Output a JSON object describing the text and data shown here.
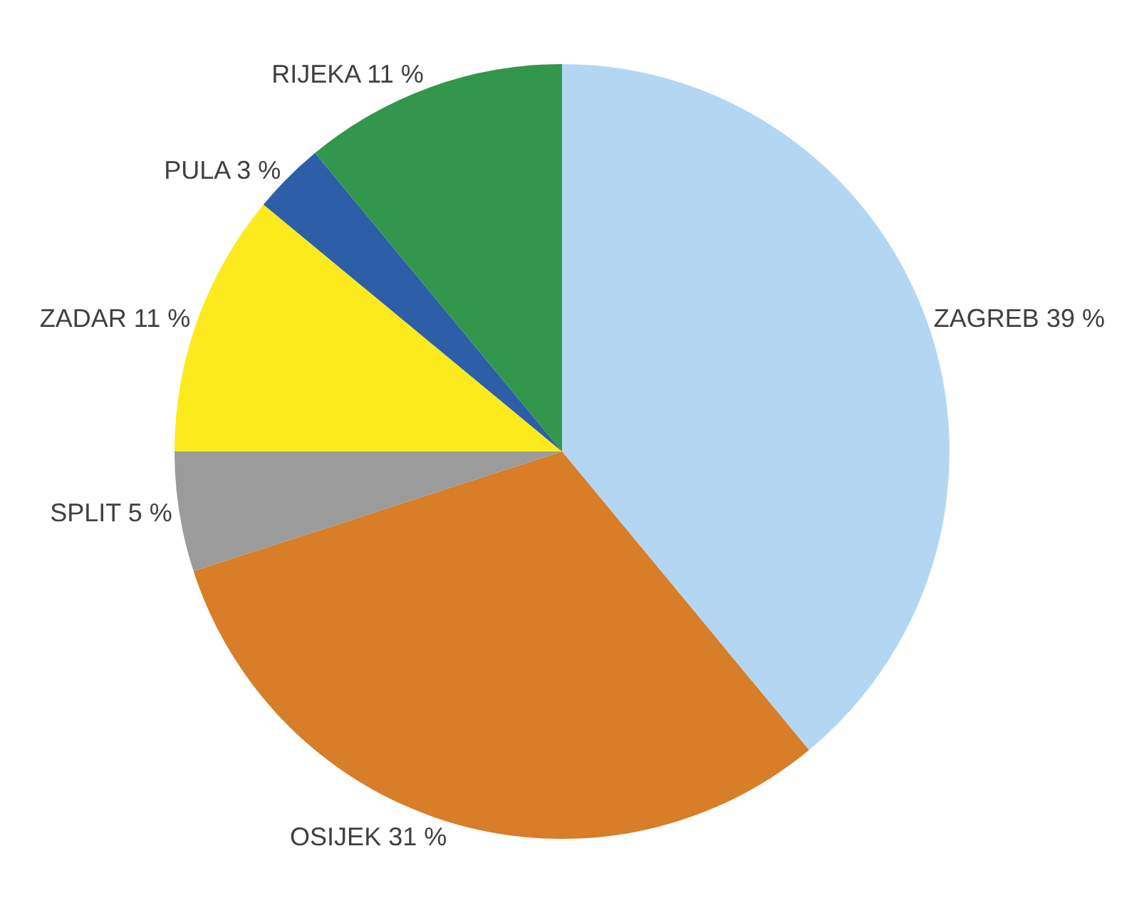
{
  "chart_data": {
    "type": "pie",
    "categories": [
      "ZAGREB",
      "OSIJEK",
      "SPLIT",
      "ZADAR",
      "PULA",
      "RIJEKA"
    ],
    "values": [
      39,
      31,
      5,
      11,
      3,
      11
    ],
    "value_labels": [
      "39 %",
      "31 %",
      "5 %",
      "11 %",
      "3 %",
      "11 %"
    ],
    "colors": [
      "#b3d7f3",
      "#d87d28",
      "#9b9b9b",
      "#fdea1c",
      "#2c5fa8",
      "#33964d"
    ],
    "legend": false
  }
}
